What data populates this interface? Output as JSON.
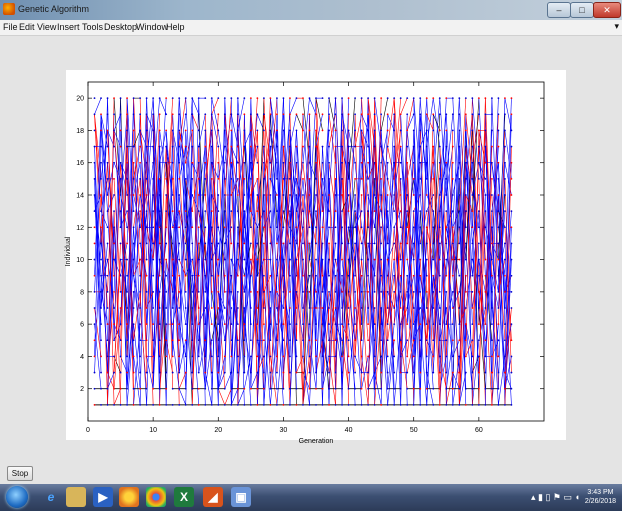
{
  "window": {
    "title": "Genetic Algorithm"
  },
  "menu": [
    "File",
    "Edit",
    "View",
    "Insert",
    "Tools",
    "Desktop",
    "Window",
    "Help"
  ],
  "controls": {
    "stop_label": "Stop"
  },
  "taskbar": {
    "time": "3:43 PM",
    "date": "2/26/2018"
  },
  "chart_data": {
    "type": "line",
    "xlabel": "Generation",
    "ylabel": "Individual",
    "xlim": [
      0,
      70
    ],
    "ylim": [
      0,
      21
    ],
    "xticks": [
      0,
      10,
      20,
      30,
      40,
      50,
      60
    ],
    "yticks": [
      2,
      4,
      6,
      8,
      10,
      12,
      14,
      16,
      18,
      20
    ],
    "generations": 65,
    "individuals": 20,
    "series_colors": [
      "#0000ff",
      "#ff0000",
      "#000000"
    ],
    "grid": false
  }
}
